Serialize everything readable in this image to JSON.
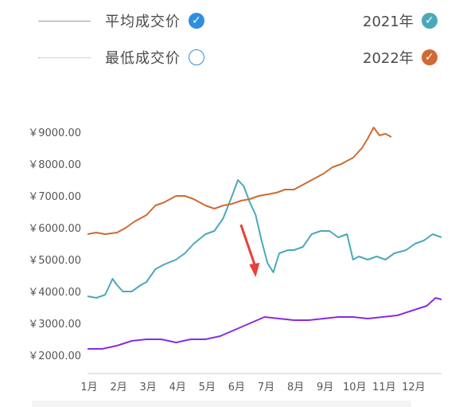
{
  "legend": {
    "avg_label": "平均成交价",
    "min_label": "最低成交价",
    "year_2021": "2021年",
    "year_2022": "2022年"
  },
  "colors": {
    "series_2021": "#4aa9b9",
    "series_2022": "#cf6a33",
    "series_min": "#8a2be2",
    "check_blue": "#2f8ee0",
    "annotation_arrow": "#e8403a"
  },
  "icons": {
    "avg_check": "check-circle-filled",
    "min_check": "circle-empty",
    "year_2021_check": "check-circle-filled",
    "year_2022_check": "check-circle-filled"
  },
  "chart_data": {
    "type": "line",
    "title": "",
    "xlabel": "",
    "ylabel": "",
    "ylim": [
      1800,
      9400
    ],
    "y_ticks": [
      "￥9000.00",
      "￥8000.00",
      "￥7000.00",
      "￥6000.00",
      "￥5000.00",
      "￥4000.00",
      "￥3000.00",
      "￥2000.00"
    ],
    "y_tick_values": [
      9000,
      8000,
      7000,
      6000,
      5000,
      4000,
      3000,
      2000
    ],
    "x_labels": [
      "1月",
      "2月",
      "3月",
      "4月",
      "5月",
      "6月",
      "7月",
      "8月",
      "9月",
      "10月",
      "11月",
      "12月"
    ],
    "x_range": [
      1,
      13
    ],
    "grid": false,
    "series": [
      {
        "name": "2021年",
        "x": [
          1,
          1.3,
          1.6,
          1.85,
          2.0,
          2.2,
          2.5,
          2.8,
          3.0,
          3.3,
          3.6,
          4.0,
          4.3,
          4.6,
          5.0,
          5.3,
          5.6,
          5.9,
          6.1,
          6.3,
          6.5,
          6.7,
          6.9,
          7.1,
          7.3,
          7.5,
          7.8,
          8.0,
          8.3,
          8.6,
          8.9,
          9.2,
          9.5,
          9.8,
          10.0,
          10.2,
          10.5,
          10.8,
          11.1,
          11.4,
          11.8,
          12.1,
          12.4,
          12.7,
          13.0
        ],
        "values": [
          3850,
          3800,
          3900,
          4400,
          4200,
          4000,
          4000,
          4200,
          4300,
          4700,
          4850,
          5000,
          5200,
          5500,
          5800,
          5900,
          6300,
          7000,
          7500,
          7300,
          6800,
          6400,
          5600,
          4900,
          4600,
          5200,
          5300,
          5300,
          5400,
          5800,
          5900,
          5900,
          5700,
          5800,
          5000,
          5100,
          5000,
          5100,
          5000,
          5200,
          5300,
          5500,
          5600,
          5800,
          5700
        ]
      },
      {
        "name": "2022年",
        "x": [
          1,
          1.3,
          1.6,
          2.0,
          2.3,
          2.6,
          3.0,
          3.3,
          3.6,
          4.0,
          4.3,
          4.6,
          5.0,
          5.3,
          5.6,
          5.9,
          6.2,
          6.5,
          6.8,
          7.1,
          7.4,
          7.7,
          8.0,
          8.3,
          8.6,
          9.0,
          9.3,
          9.6,
          10.0,
          10.3,
          10.5,
          10.7,
          10.9,
          11.1,
          11.3
        ],
        "values": [
          5800,
          5850,
          5800,
          5850,
          6000,
          6200,
          6400,
          6700,
          6800,
          7000,
          7000,
          6900,
          6700,
          6600,
          6700,
          6750,
          6850,
          6900,
          7000,
          7050,
          7100,
          7200,
          7200,
          7350,
          7500,
          7700,
          7900,
          8000,
          8200,
          8500,
          8800,
          9150,
          8900,
          8950,
          8850
        ]
      },
      {
        "name": "最低成交价",
        "x": [
          1,
          1.5,
          2.0,
          2.5,
          3.0,
          3.5,
          4.0,
          4.5,
          5.0,
          5.5,
          6.0,
          6.5,
          7.0,
          7.5,
          8.0,
          8.5,
          9.0,
          9.5,
          10.0,
          10.5,
          11.0,
          11.5,
          12.0,
          12.5,
          12.8,
          13.0
        ],
        "values": [
          2200,
          2200,
          2300,
          2450,
          2500,
          2500,
          2400,
          2500,
          2500,
          2600,
          2800,
          3000,
          3200,
          3150,
          3100,
          3100,
          3150,
          3200,
          3200,
          3150,
          3200,
          3250,
          3400,
          3550,
          3800,
          3750
        ]
      }
    ]
  }
}
